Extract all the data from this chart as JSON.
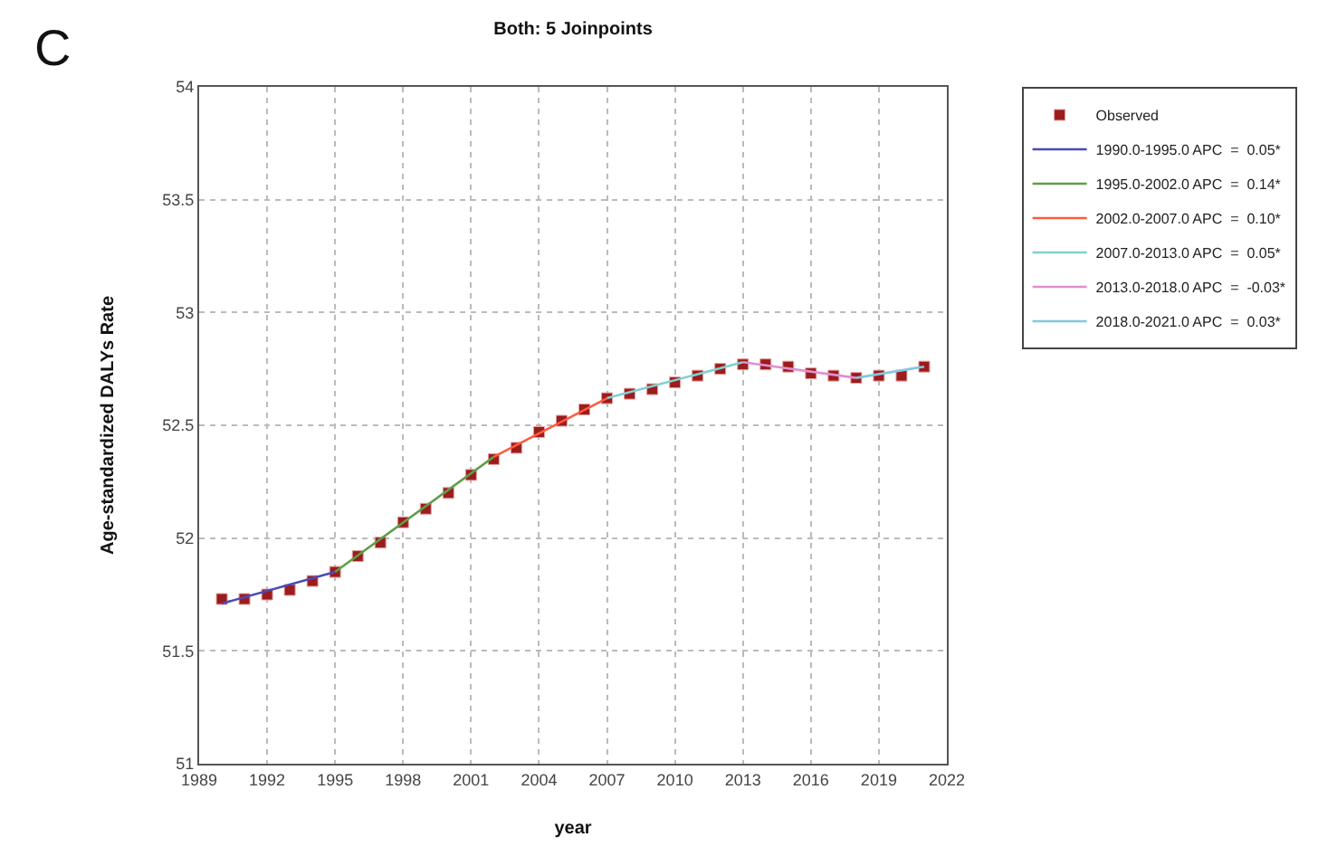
{
  "chart_data": {
    "type": "line",
    "title": "Both: 5 Joinpoints",
    "xlabel": "year",
    "ylabel": "Age-standardized DALYs Rate",
    "annotations": [
      "C"
    ],
    "xlim": [
      1989,
      2022
    ],
    "xticks": [
      1989,
      1992,
      1995,
      1998,
      2001,
      2004,
      2007,
      2010,
      2013,
      2016,
      2019,
      2022
    ],
    "ylim": [
      51,
      54
    ],
    "yticks": [
      51,
      51.5,
      52,
      52.5,
      53,
      53.5,
      54
    ],
    "grid": true,
    "legend": "top right",
    "line_style": "solid",
    "series": [
      {
        "name": "Observed",
        "type": "scatter",
        "marker": "square",
        "color": "#9b1c1c",
        "x": [
          1990,
          1991,
          1992,
          1993,
          1994,
          1995,
          1996,
          1997,
          1998,
          1999,
          2000,
          2001,
          2002,
          2003,
          2004,
          2005,
          2006,
          2007,
          2008,
          2009,
          2010,
          2011,
          2012,
          2013,
          2014,
          2015,
          2016,
          2017,
          2018,
          2019,
          2020,
          2021
        ],
        "values": [
          51.73,
          51.73,
          51.75,
          51.77,
          51.81,
          51.85,
          51.92,
          51.98,
          52.07,
          52.13,
          52.2,
          52.28,
          52.35,
          52.4,
          52.47,
          52.52,
          52.57,
          52.62,
          52.64,
          52.66,
          52.69,
          52.72,
          52.75,
          52.77,
          52.77,
          52.76,
          52.73,
          52.72,
          52.71,
          52.72,
          52.72,
          52.76
        ]
      },
      {
        "name": "1990.0-1995.0 APC  =  0.05*",
        "color": "#4a4ab8",
        "x": [
          1990,
          1995
        ],
        "values": [
          51.71,
          51.85
        ]
      },
      {
        "name": "1995.0-2002.0 APC  =  0.14*",
        "color": "#5e9e48",
        "x": [
          1995,
          2002
        ],
        "values": [
          51.85,
          52.36
        ]
      },
      {
        "name": "2002.0-2007.0 APC  =  0.10*",
        "color": "#ff5a40",
        "x": [
          2002,
          2007
        ],
        "values": [
          52.36,
          52.62
        ]
      },
      {
        "name": "2007.0-2013.0 APC  =  0.05*",
        "color": "#80d0d0",
        "x": [
          2007,
          2013
        ],
        "values": [
          52.62,
          52.78
        ]
      },
      {
        "name": "2013.0-2018.0 APC  =  -0.03*",
        "color": "#e090d0",
        "x": [
          2013,
          2018
        ],
        "values": [
          52.78,
          52.71
        ]
      },
      {
        "name": "2018.0-2021.0 APC  =  0.03*",
        "color": "#80c8e0",
        "x": [
          2018,
          2021
        ],
        "values": [
          52.71,
          52.76
        ]
      }
    ]
  }
}
